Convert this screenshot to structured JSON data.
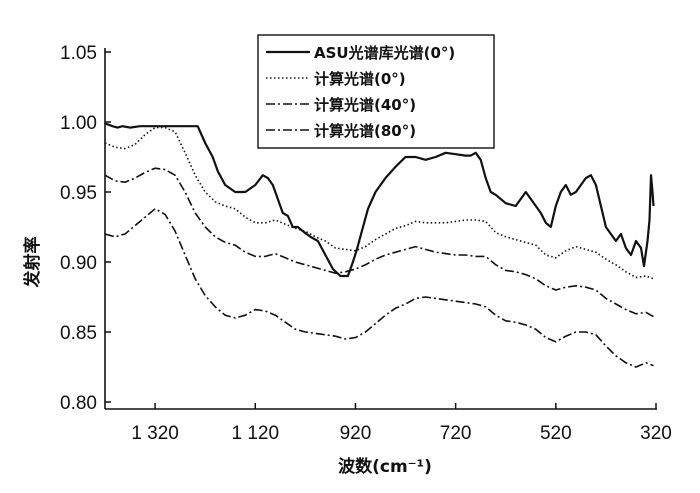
{
  "chart_data": {
    "type": "line",
    "xlabel": "波数(cm⁻¹)",
    "ylabel": "发射率",
    "xlim": [
      1420,
      318
    ],
    "ylim": [
      0.795,
      1.05
    ],
    "x_reversed": true,
    "x_ticks": [
      1320,
      1120,
      920,
      720,
      520,
      320
    ],
    "x_tick_labels": [
      "1 320",
      "1 120",
      "920",
      "720",
      "520",
      "320"
    ],
    "y_ticks": [
      0.8,
      0.85,
      0.9,
      0.95,
      1.0,
      1.05
    ],
    "y_tick_labels": [
      "0.80",
      "0.85",
      "0.90",
      "0.95",
      "1.00",
      "1.05"
    ],
    "grid": false,
    "legend_position": "top-center",
    "series": [
      {
        "name": "ASU光谱库光谱(0°)",
        "style": "solid",
        "x": [
          1420,
          1405,
          1395,
          1385,
          1370,
          1350,
          1320,
          1300,
          1280,
          1250,
          1235,
          1220,
          1205,
          1195,
          1180,
          1160,
          1140,
          1120,
          1105,
          1095,
          1085,
          1075,
          1065,
          1055,
          1045,
          1035,
          1025,
          1010,
          995,
          980,
          965,
          950,
          935,
          925,
          918,
          905,
          895,
          880,
          860,
          840,
          820,
          800,
          780,
          760,
          740,
          720,
          700,
          690,
          680,
          670,
          660,
          650,
          640,
          620,
          600,
          580,
          560,
          550,
          540,
          530,
          520,
          510,
          500,
          490,
          480,
          470,
          460,
          450,
          440,
          430,
          420,
          410,
          400,
          390,
          380,
          370,
          360,
          350,
          344,
          337,
          333,
          330,
          327,
          325
        ],
        "y": [
          0.999,
          0.997,
          0.996,
          0.997,
          0.996,
          0.997,
          0.997,
          0.997,
          0.997,
          0.997,
          0.997,
          0.985,
          0.975,
          0.965,
          0.955,
          0.95,
          0.95,
          0.955,
          0.962,
          0.96,
          0.955,
          0.945,
          0.935,
          0.933,
          0.925,
          0.925,
          0.922,
          0.918,
          0.915,
          0.905,
          0.895,
          0.89,
          0.89,
          0.9,
          0.908,
          0.925,
          0.938,
          0.95,
          0.96,
          0.968,
          0.975,
          0.975,
          0.973,
          0.975,
          0.978,
          0.977,
          0.976,
          0.976,
          0.978,
          0.973,
          0.96,
          0.95,
          0.948,
          0.942,
          0.94,
          0.95,
          0.94,
          0.935,
          0.928,
          0.925,
          0.94,
          0.95,
          0.955,
          0.948,
          0.95,
          0.955,
          0.96,
          0.962,
          0.955,
          0.94,
          0.925,
          0.92,
          0.915,
          0.92,
          0.91,
          0.905,
          0.915,
          0.91,
          0.897,
          0.915,
          0.93,
          0.962,
          0.95,
          0.94
        ]
      },
      {
        "name": "计算光谱(0°)",
        "style": "dotted",
        "x": [
          1420,
          1400,
          1380,
          1360,
          1340,
          1320,
          1300,
          1280,
          1260,
          1240,
          1220,
          1200,
          1180,
          1160,
          1140,
          1120,
          1100,
          1080,
          1060,
          1040,
          1020,
          1000,
          980,
          960,
          940,
          920,
          900,
          880,
          860,
          840,
          820,
          800,
          780,
          760,
          740,
          720,
          700,
          680,
          660,
          640,
          620,
          600,
          580,
          560,
          540,
          520,
          500,
          480,
          460,
          440,
          420,
          400,
          380,
          360,
          340,
          325
        ],
        "y": [
          0.985,
          0.982,
          0.981,
          0.984,
          0.991,
          0.996,
          0.996,
          0.993,
          0.978,
          0.962,
          0.95,
          0.943,
          0.94,
          0.938,
          0.932,
          0.928,
          0.928,
          0.93,
          0.927,
          0.924,
          0.922,
          0.918,
          0.915,
          0.91,
          0.909,
          0.908,
          0.911,
          0.916,
          0.92,
          0.924,
          0.926,
          0.929,
          0.928,
          0.928,
          0.928,
          0.929,
          0.93,
          0.93,
          0.929,
          0.921,
          0.918,
          0.916,
          0.914,
          0.912,
          0.905,
          0.903,
          0.908,
          0.911,
          0.909,
          0.907,
          0.902,
          0.898,
          0.893,
          0.889,
          0.89,
          0.888
        ]
      },
      {
        "name": "计算光谱(40°)",
        "style": "dashdot",
        "x": [
          1420,
          1400,
          1380,
          1360,
          1340,
          1320,
          1300,
          1280,
          1260,
          1240,
          1220,
          1200,
          1180,
          1160,
          1140,
          1120,
          1100,
          1080,
          1060,
          1040,
          1020,
          1000,
          980,
          960,
          940,
          920,
          900,
          880,
          860,
          840,
          820,
          800,
          780,
          760,
          740,
          720,
          700,
          680,
          660,
          640,
          620,
          600,
          580,
          560,
          540,
          520,
          500,
          480,
          460,
          440,
          420,
          400,
          380,
          360,
          340,
          325
        ],
        "y": [
          0.962,
          0.958,
          0.957,
          0.96,
          0.964,
          0.967,
          0.966,
          0.962,
          0.95,
          0.935,
          0.925,
          0.918,
          0.914,
          0.912,
          0.907,
          0.904,
          0.904,
          0.906,
          0.903,
          0.9,
          0.898,
          0.896,
          0.894,
          0.892,
          0.893,
          0.895,
          0.898,
          0.902,
          0.905,
          0.907,
          0.909,
          0.911,
          0.909,
          0.907,
          0.906,
          0.905,
          0.905,
          0.904,
          0.904,
          0.898,
          0.894,
          0.893,
          0.891,
          0.888,
          0.883,
          0.88,
          0.882,
          0.883,
          0.882,
          0.88,
          0.874,
          0.87,
          0.866,
          0.863,
          0.864,
          0.861
        ]
      },
      {
        "name": "计算光谱(80°)",
        "style": "dashdot",
        "x": [
          1420,
          1400,
          1380,
          1360,
          1340,
          1320,
          1300,
          1280,
          1260,
          1240,
          1220,
          1200,
          1180,
          1160,
          1140,
          1120,
          1100,
          1080,
          1060,
          1040,
          1020,
          1000,
          980,
          960,
          940,
          920,
          900,
          880,
          860,
          840,
          820,
          800,
          780,
          760,
          740,
          720,
          700,
          680,
          660,
          640,
          620,
          600,
          580,
          560,
          540,
          520,
          500,
          480,
          460,
          440,
          420,
          400,
          380,
          360,
          340,
          325
        ],
        "y": [
          0.92,
          0.918,
          0.92,
          0.926,
          0.932,
          0.938,
          0.934,
          0.922,
          0.905,
          0.888,
          0.876,
          0.868,
          0.862,
          0.86,
          0.862,
          0.866,
          0.865,
          0.862,
          0.857,
          0.852,
          0.85,
          0.849,
          0.848,
          0.847,
          0.845,
          0.846,
          0.85,
          0.856,
          0.862,
          0.867,
          0.87,
          0.874,
          0.875,
          0.874,
          0.873,
          0.872,
          0.871,
          0.87,
          0.868,
          0.862,
          0.858,
          0.857,
          0.855,
          0.852,
          0.846,
          0.843,
          0.847,
          0.85,
          0.85,
          0.848,
          0.84,
          0.833,
          0.828,
          0.825,
          0.828,
          0.826
        ]
      }
    ]
  }
}
